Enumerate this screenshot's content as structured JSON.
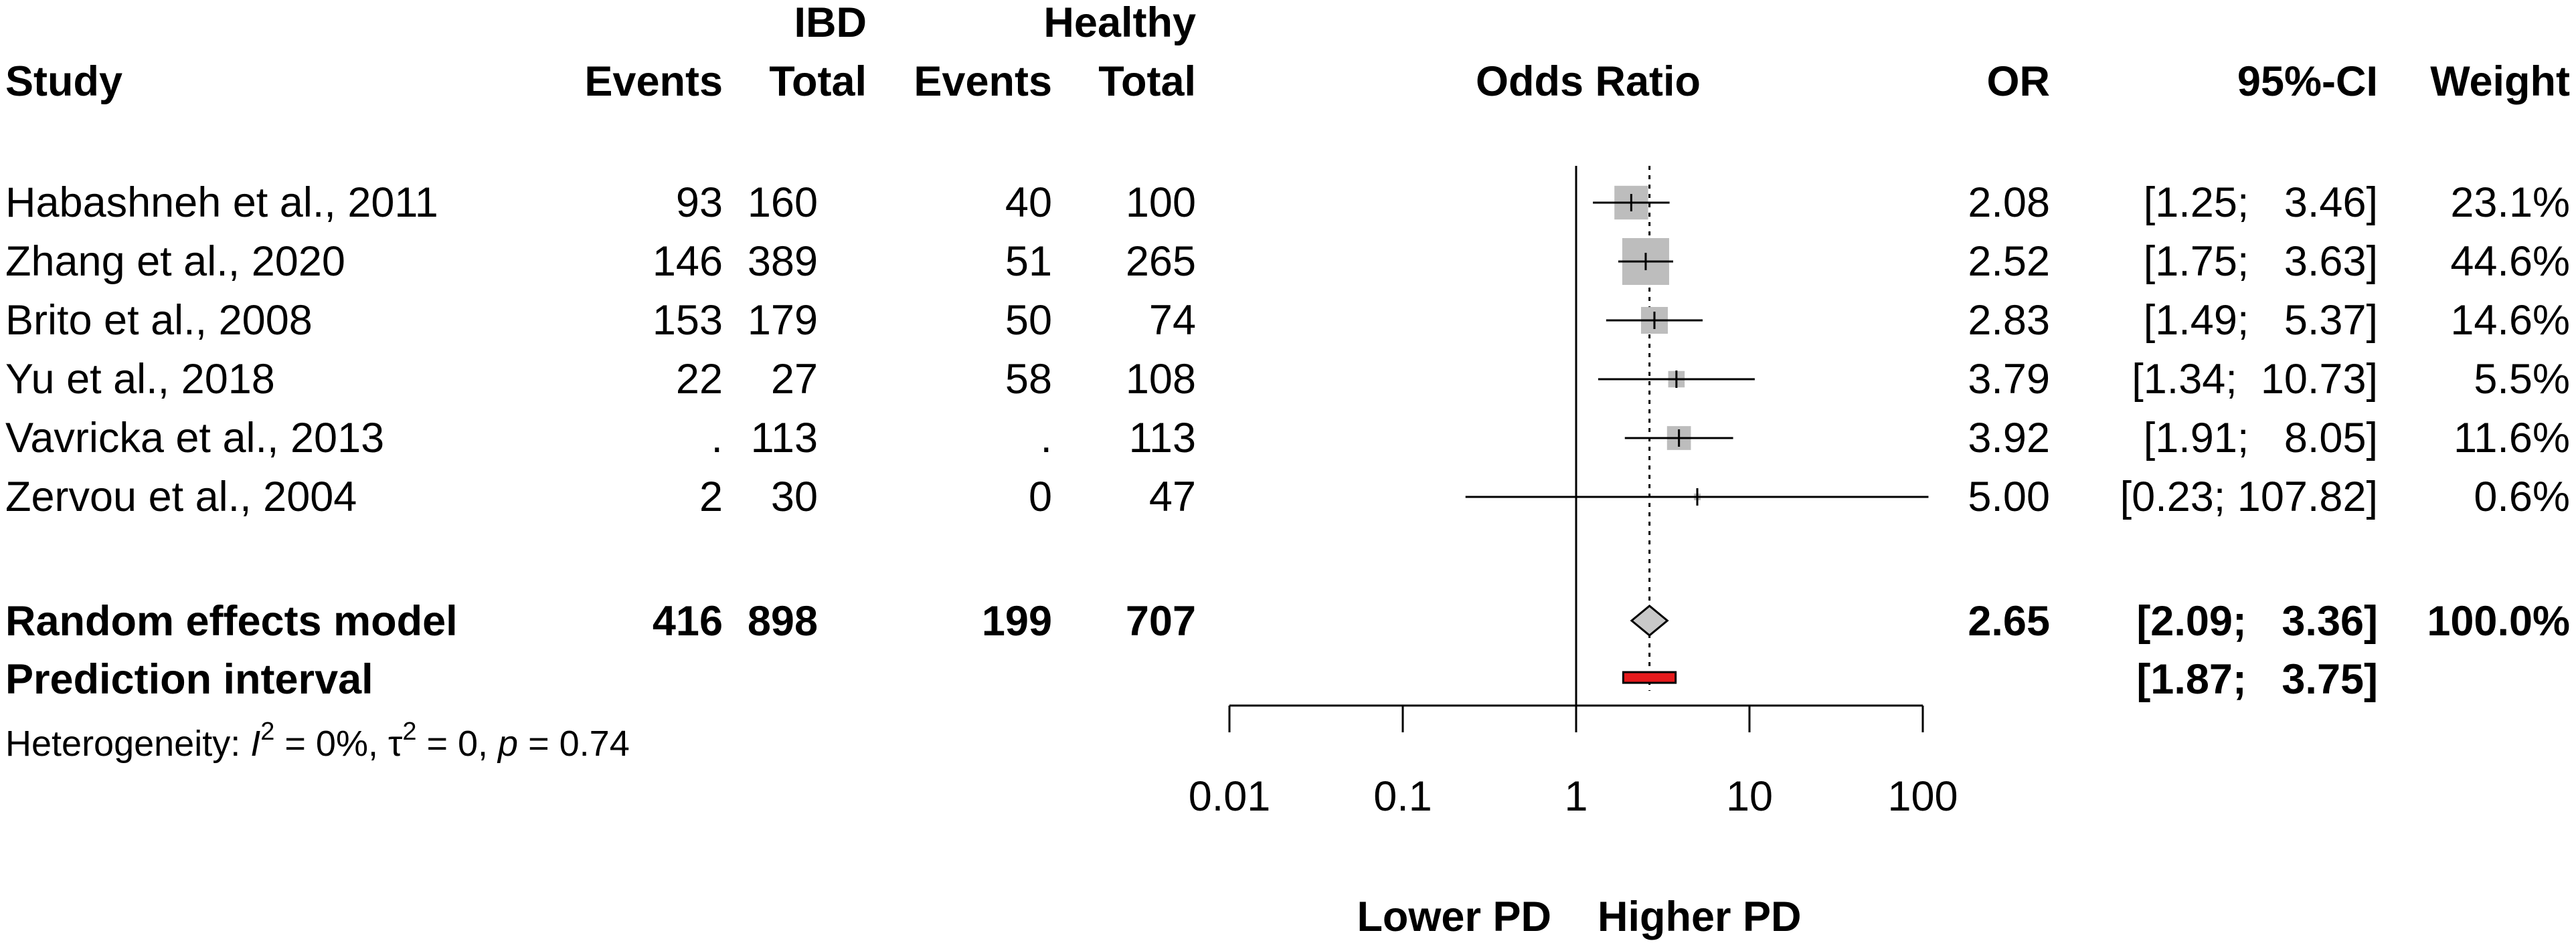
{
  "columns": {
    "study": "Study",
    "group1": "IBD",
    "group2": "Healthy",
    "events": "Events",
    "total": "Total",
    "plot_title": "Odds Ratio",
    "or": "OR",
    "ci": "95%-CI",
    "weight": "Weight"
  },
  "studies": [
    {
      "name": "Habashneh et al., 2011",
      "e1": "93",
      "t1": "160",
      "e2": "40",
      "t2": "100",
      "or_text": "2.08",
      "ci_text": "[1.25;   3.46]",
      "weight_text": "23.1%"
    },
    {
      "name": "Zhang et al., 2020",
      "e1": "146",
      "t1": "389",
      "e2": "51",
      "t2": "265",
      "or_text": "2.52",
      "ci_text": "[1.75;   3.63]",
      "weight_text": "44.6%"
    },
    {
      "name": "Brito et al., 2008",
      "e1": "153",
      "t1": "179",
      "e2": "50",
      "t2": "74",
      "or_text": "2.83",
      "ci_text": "[1.49;   5.37]",
      "weight_text": "14.6%"
    },
    {
      "name": "Yu et al., 2018",
      "e1": "22",
      "t1": "27",
      "e2": "58",
      "t2": "108",
      "or_text": "3.79",
      "ci_text": "[1.34;  10.73]",
      "weight_text": "5.5%"
    },
    {
      "name": "Vavricka et al., 2013",
      "e1": ".",
      "t1": "113",
      "e2": ".",
      "t2": "113",
      "or_text": "3.92",
      "ci_text": "[1.91;   8.05]",
      "weight_text": "11.6%"
    },
    {
      "name": "Zervou et al., 2004",
      "e1": "2",
      "t1": "30",
      "e2": "0",
      "t2": "47",
      "or_text": "5.00",
      "ci_text": "[0.23; 107.82]",
      "weight_text": "0.6%"
    }
  ],
  "random_effects": {
    "label": "Random effects model",
    "e1": "416",
    "t1": "898",
    "e2": "199",
    "t2": "707",
    "or_text": "2.65",
    "ci_text": "[2.09;   3.36]",
    "weight_text": "100.0%"
  },
  "prediction": {
    "label": "Prediction interval",
    "ci_text": "[1.87;   3.75]"
  },
  "heterogeneity": {
    "prefix": "Heterogeneity: ",
    "I": "I",
    "i_rest": " = 0%, ",
    "tau": "τ",
    "tau_rest": " = 0, ",
    "p": "p",
    "p_rest": " = 0.74",
    "sq": "2"
  },
  "axis_labels": {
    "left": "Lower PD",
    "right": "Higher PD"
  },
  "colors": {
    "box": "#bdbdbd",
    "diamond": "#c8c8c8",
    "prediction": "#e41a1c",
    "line": "#000000"
  },
  "chart_data": {
    "type": "forest",
    "title": "Odds Ratio",
    "xscale": "log",
    "xlim": [
      0.01,
      100
    ],
    "xticks": [
      0.01,
      0.1,
      1,
      10,
      100
    ],
    "xtick_labels": [
      "0.01",
      "0.1",
      "1",
      "10",
      "100"
    ],
    "null_value": 1,
    "studies": [
      {
        "name": "Habashneh et al., 2011",
        "or": 2.08,
        "lower": 1.25,
        "upper": 3.46,
        "weight": 23.1
      },
      {
        "name": "Zhang et al., 2020",
        "or": 2.52,
        "lower": 1.75,
        "upper": 3.63,
        "weight": 44.6
      },
      {
        "name": "Brito et al., 2008",
        "or": 2.83,
        "lower": 1.49,
        "upper": 5.37,
        "weight": 14.6
      },
      {
        "name": "Yu et al., 2018",
        "or": 3.79,
        "lower": 1.34,
        "upper": 10.73,
        "weight": 5.5
      },
      {
        "name": "Vavricka et al., 2013",
        "or": 3.92,
        "lower": 1.91,
        "upper": 8.05,
        "weight": 11.6
      },
      {
        "name": "Zervou et al., 2004",
        "or": 5.0,
        "lower": 0.23,
        "upper": 107.82,
        "weight": 0.6
      }
    ],
    "pooled": {
      "name": "Random effects model",
      "or": 2.65,
      "lower": 2.09,
      "upper": 3.36,
      "weight": 100.0
    },
    "prediction_interval": {
      "lower": 1.87,
      "upper": 3.75
    }
  }
}
